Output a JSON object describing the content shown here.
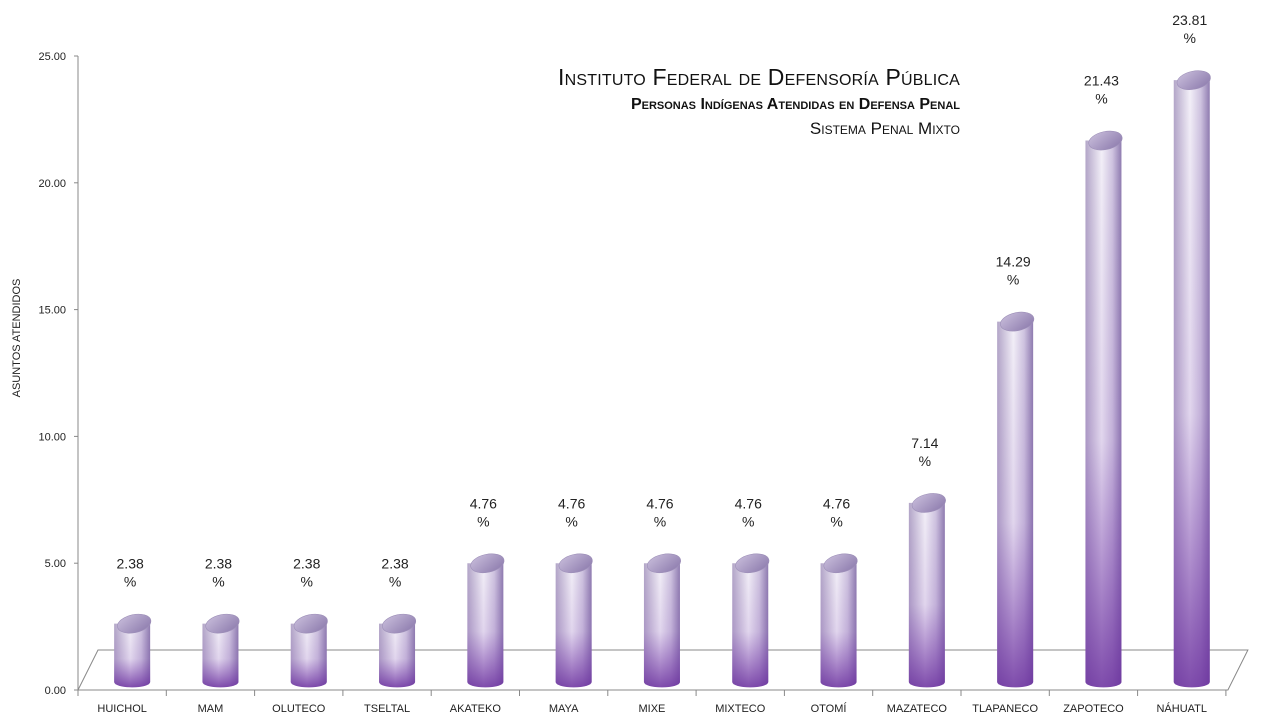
{
  "chart_data": {
    "type": "bar",
    "title": "Instituto Federal de Defensoría Pública",
    "subtitle": "Personas Indígenas Atendidas en Defensa Penal",
    "subtitle2": "Sistema Penal Mixto",
    "ylabel": "ASUNTOS ATENDIDOS",
    "xlabel": "",
    "ylim": [
      0,
      25
    ],
    "yticks": [
      "0.00",
      "5.00",
      "10.00",
      "15.00",
      "20.00",
      "25.00"
    ],
    "categories": [
      "HUICHOL",
      "MAM",
      "OLUTECO",
      "TSELTAL",
      "AKATEKO",
      "MAYA",
      "MIXE",
      "MIXTECO",
      "OTOMÍ",
      "MAZATECO",
      "TLAPANECO",
      "ZAPOTECO",
      "NÁHUATL"
    ],
    "values": [
      2.38,
      2.38,
      2.38,
      2.38,
      4.76,
      4.76,
      4.76,
      4.76,
      4.76,
      7.14,
      14.29,
      21.43,
      23.81
    ],
    "data_labels": [
      "2.38",
      "2.38",
      "2.38",
      "2.38",
      "4.76",
      "4.76",
      "4.76",
      "4.76",
      "4.76",
      "7.14",
      "14.29",
      "21.43",
      "23.81"
    ],
    "data_label_unit": "%",
    "grid": false,
    "legend": "none",
    "colors": {
      "bar_light": "#f1eef6",
      "bar_mid": "#b8a9cf",
      "bar_dark": "#6a2f9e",
      "top_cap": "#a496bf"
    }
  }
}
